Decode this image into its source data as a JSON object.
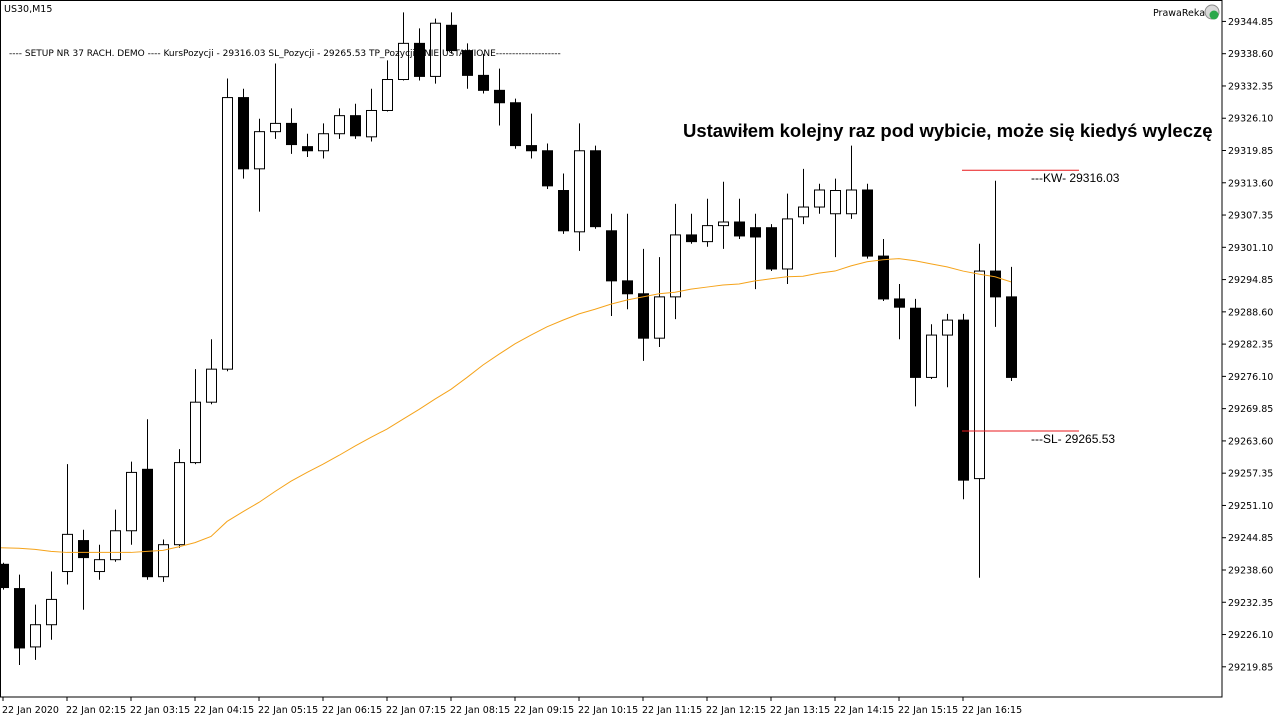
{
  "chart_data": {
    "type": "candlestick",
    "title": "US30,M15",
    "account": "PrawaReka",
    "comment": "---- SETUP NR 37 RACH. DEMO ---- KursPozycji - 29316.03 SL_Pozycji - 29265.53  TP_Pozycji - NIE USTAWIONE--------------------",
    "annotation": "Ustawiłem kolejny raz pod wybicie, może się kiedyś wyleczę",
    "bull_color": "#ffffff",
    "bear_color": "#000000",
    "categories": [
      "22 Jan 2020",
      null,
      null,
      null,
      "22 Jan 02:15",
      null,
      null,
      null,
      "22 Jan 03:15",
      null,
      null,
      null,
      "22 Jan 04:15",
      null,
      null,
      null,
      "22 Jan 05:15",
      null,
      null,
      null,
      "22 Jan 06:15",
      null,
      null,
      null,
      "22 Jan 07:15",
      null,
      null,
      null,
      "22 Jan 08:15",
      null,
      null,
      null,
      "22 Jan 09:15",
      null,
      null,
      null,
      "22 Jan 10:15",
      null,
      null,
      null,
      "22 Jan 11:15",
      null,
      null,
      null,
      "22 Jan 12:15",
      null,
      null,
      null,
      "22 Jan 13:15",
      null,
      null,
      null,
      "22 Jan 14:15",
      null,
      null,
      null,
      "22 Jan 15:15",
      null,
      null,
      null,
      "22 Jan 16:15",
      null,
      null,
      null
    ],
    "open": [
      29239.7,
      29235.0,
      29223.7,
      29228.0,
      29238.3,
      29244.3,
      29238.3,
      29240.6,
      29246.2,
      29258.1,
      29237.3,
      29243.5,
      29259.4,
      29271.1,
      29277.5,
      29330.1,
      29316.3,
      29323.5,
      29325.1,
      29320.6,
      29319.8,
      29323.1,
      29326.6,
      29322.5,
      29327.6,
      29333.6,
      29340.6,
      29334.2,
      29344.1,
      29339.2,
      29334.4,
      29331.5,
      29329.1,
      29320.8,
      29319.8,
      29312.1,
      29304.1,
      29319.8,
      29304.3,
      29294.6,
      29292.1,
      29283.5,
      29291.5,
      29303.5,
      29302.2,
      29305.3,
      29306.0,
      29304.9,
      29304.9,
      29296.9,
      29307.0,
      29308.9,
      29307.6,
      29307.6,
      29312.2,
      29299.4,
      29291.1,
      29289.3,
      29275.9,
      29284.1,
      29287.0,
      29256.3,
      29296.5,
      29291.5
    ],
    "high": [
      29240.0,
      29237.7,
      29231.9,
      29238.3,
      29259.1,
      29246.4,
      29243.5,
      29250.3,
      29259.6,
      29267.8,
      29244.5,
      29262.0,
      29277.5,
      29283.3,
      29333.8,
      29331.8,
      29326.0,
      29336.7,
      29328.0,
      29323.1,
      29325.1,
      29328.0,
      29328.9,
      29331.8,
      29337.3,
      29346.6,
      29343.5,
      29345.4,
      29346.6,
      29340.6,
      29338.6,
      29335.7,
      29329.9,
      29327.0,
      29321.2,
      29315.4,
      29325.1,
      29320.8,
      29307.6,
      29307.6,
      29300.8,
      29299.2,
      29309.5,
      29307.6,
      29310.5,
      29313.8,
      29310.5,
      29307.6,
      29305.6,
      29311.5,
      29316.3,
      29313.4,
      29314.4,
      29320.8,
      29313.4,
      29302.7,
      29294.0,
      29291.1,
      29286.2,
      29288.2,
      29288.2,
      29301.8,
      29314.0,
      29297.3
    ],
    "low": [
      29234.8,
      29220.2,
      29221.2,
      29225.1,
      29235.8,
      29230.9,
      29236.7,
      29240.2,
      29243.5,
      29236.7,
      29236.3,
      29242.9,
      29259.1,
      29270.7,
      29277.1,
      29314.4,
      29308.0,
      29322.1,
      29319.2,
      29318.6,
      29318.3,
      29322.1,
      29322.1,
      29321.6,
      29327.4,
      29333.4,
      29333.4,
      29332.8,
      29338.6,
      29331.8,
      29330.9,
      29324.7,
      29320.2,
      29318.3,
      29312.4,
      29303.7,
      29300.4,
      29304.7,
      29287.8,
      29289.1,
      29279.1,
      29281.8,
      29287.2,
      29301.8,
      29301.2,
      29300.8,
      29302.7,
      29293.0,
      29296.5,
      29294.0,
      29305.6,
      29307.6,
      29299.2,
      29306.6,
      29298.9,
      29290.7,
      29283.3,
      29270.3,
      29275.6,
      29274.0,
      29252.3,
      29237.1,
      29285.7,
      29275.2
    ],
    "close": [
      29235.2,
      29223.5,
      29228.0,
      29232.9,
      29245.5,
      29241.0,
      29240.6,
      29246.2,
      29257.5,
      29237.3,
      29243.5,
      29259.4,
      29271.1,
      29277.5,
      29330.1,
      29316.3,
      29323.5,
      29325.1,
      29321.0,
      29319.8,
      29323.1,
      29326.6,
      29322.7,
      29327.6,
      29333.6,
      29340.6,
      29334.2,
      29344.5,
      29339.2,
      29334.4,
      29331.5,
      29329.1,
      29320.8,
      29319.8,
      29313.0,
      29304.3,
      29319.8,
      29305.1,
      29294.6,
      29292.1,
      29283.5,
      29291.5,
      29303.5,
      29302.2,
      29305.3,
      29306.0,
      29303.3,
      29303.1,
      29296.9,
      29306.6,
      29308.9,
      29312.2,
      29312.1,
      29312.2,
      29299.4,
      29291.1,
      29289.5,
      29275.9,
      29284.1,
      29287.0,
      29256.0,
      29296.5,
      29291.5,
      29275.9
    ],
    "overlay": {
      "type": "line",
      "color": "#f5a31a",
      "values": [
        29242.9,
        29242.8,
        29242.6,
        29242.2,
        29242.0,
        29242.0,
        29242.0,
        29242.0,
        29242.0,
        29242.2,
        29242.4,
        29243.1,
        29243.9,
        29245.1,
        29248.0,
        29249.9,
        29251.7,
        29253.8,
        29255.8,
        29257.5,
        29259.1,
        29260.8,
        29262.6,
        29264.3,
        29265.9,
        29267.8,
        29269.7,
        29271.7,
        29273.6,
        29275.9,
        29278.3,
        29280.4,
        29282.4,
        29284.1,
        29285.7,
        29287.0,
        29288.2,
        29289.1,
        29290.1,
        29290.9,
        29291.5,
        29292.1,
        29292.4,
        29293.0,
        29293.4,
        29293.8,
        29294.0,
        29294.6,
        29295.0,
        29295.4,
        29295.5,
        29296.1,
        29296.5,
        29297.5,
        29298.3,
        29298.7,
        29298.9,
        29298.5,
        29297.9,
        29297.3,
        29296.5,
        29295.9,
        29295.4,
        29294.4
      ]
    },
    "levels": [
      {
        "value": 29316.03,
        "label": "---KW- 29316.03",
        "color": "#e8191c"
      },
      {
        "value": 29265.53,
        "label": "---SL- 29265.53",
        "color": "#e8191c"
      }
    ],
    "ylim": [
      29214.0,
      29349.0
    ],
    "yticks": [
      29219.85,
      {
        "value": 29226.1,
        "label": "29226.10"
      },
      29232.35,
      {
        "value": 29238.6,
        "label": "29238.60"
      },
      29244.85,
      {
        "value": 29251.1,
        "label": "29251.10"
      },
      29257.35,
      {
        "value": 29263.6,
        "label": "29263.60"
      },
      29269.85,
      {
        "value": 29276.1,
        "label": "29276.10"
      },
      29282.35,
      {
        "value": 29288.6,
        "label": "29288.60"
      },
      29294.85,
      {
        "value": 29301.1,
        "label": "29301.10"
      },
      29307.35,
      {
        "value": 29313.6,
        "label": "29313.60"
      },
      29319.85,
      {
        "value": 29326.1,
        "label": "29326.10"
      },
      29332.35,
      {
        "value": 29338.6,
        "label": "29338.60"
      },
      29344.85
    ]
  }
}
